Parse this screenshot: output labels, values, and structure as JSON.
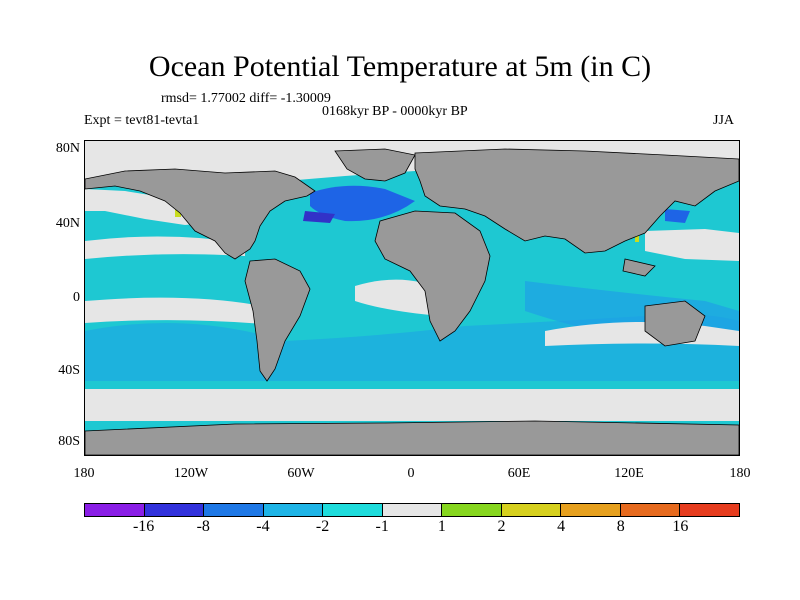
{
  "title": "Ocean Potential Temperature at 5m (in C)",
  "stats": "rmsd= 1.77002 diff= -1.30009",
  "period": "0168kyr BP - 0000kyr BP",
  "experiment": "Expt = tevt81-tevta1",
  "season": "JJA",
  "lat_labels": [
    "80N",
    "40N",
    "0",
    "40S",
    "80S"
  ],
  "lon_labels": [
    "180",
    "120W",
    "60W",
    "0",
    "60E",
    "120E",
    "180"
  ],
  "colorbar": {
    "colors": [
      "#8a1ee6",
      "#3232dc",
      "#1e78e6",
      "#1eb4e6",
      "#1edcdc",
      "#e6e6e6",
      "#86d61e",
      "#d6d01e",
      "#e6a01e",
      "#e66a1e",
      "#e63c1e"
    ],
    "labels": [
      "-16",
      "-8",
      "-4",
      "-2",
      "-1",
      "1",
      "2",
      "4",
      "8",
      "16"
    ]
  },
  "map_colors": {
    "land": "#999999",
    "ocean": "#1ec8d2",
    "neutral": "#e6e6e6",
    "cool": "#1ea0e6",
    "cold": "#1e64e6",
    "coldest": "#3232c8",
    "warm": "#c8dc1e"
  }
}
